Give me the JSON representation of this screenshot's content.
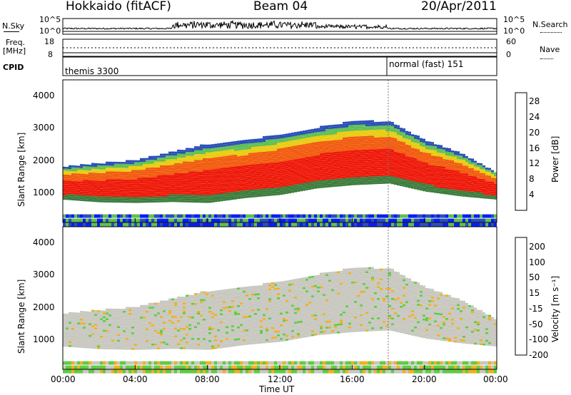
{
  "header": {
    "station": "Hokkaido (fitACF)",
    "beam": "Beam 04",
    "date": "20/Apr/2011"
  },
  "top_panels": {
    "nsky": {
      "label": "N.Sky",
      "ticks": [
        "10^5",
        "10^0"
      ],
      "right_ticks": [
        "10^5",
        "10^0"
      ],
      "right_label": "N.Search"
    },
    "freq": {
      "label_line1": "Freq.",
      "label_line2": "[MHz]",
      "ticks": [
        "18",
        "8"
      ],
      "right_ticks": [
        "60",
        "0"
      ],
      "right_label": "Nave"
    },
    "cpid": {
      "label": "CPID",
      "modes": [
        "themis 3300",
        "normal (fast) 151"
      ]
    }
  },
  "chart_data": [
    {
      "type": "heatmap",
      "name": "power",
      "ylabel": "Slant Range [km]",
      "yticks": [
        "1000",
        "2000",
        "3000",
        "4000"
      ],
      "ylim": [
        200,
        4600
      ],
      "colorbar": {
        "label": "Power [dB]",
        "ticks": [
          "4",
          "8",
          "12",
          "16",
          "20",
          "24",
          "28"
        ],
        "colors": [
          "#0b1ef0",
          "#2a4fb8",
          "#3e7d3e",
          "#5fbf54",
          "#e8cc14",
          "#f29318",
          "#f25c10",
          "#ee1a0a"
        ]
      },
      "bands": [
        {
          "t": [
            0,
            2,
            4,
            6,
            8,
            10,
            12,
            14,
            16,
            18,
            20,
            22,
            24
          ],
          "low": [
            900,
            820,
            800,
            830,
            800,
            950,
            1050,
            1250,
            1350,
            1400,
            1150,
            1000,
            900
          ],
          "high": [
            1900,
            2000,
            2100,
            2350,
            2600,
            2700,
            2900,
            3100,
            3300,
            3300,
            2700,
            2300,
            1700
          ]
        }
      ]
    },
    {
      "type": "heatmap",
      "name": "velocity",
      "ylabel": "Slant Range [km]",
      "yticks": [
        "1000",
        "2000",
        "3000",
        "4000"
      ],
      "ylim": [
        200,
        4600
      ],
      "colorbar": {
        "label": "Velocity [m s⁻¹]",
        "ticks": [
          "200",
          "100",
          "50",
          "15",
          "-15",
          "-50",
          "-100",
          "-200"
        ],
        "colors": [
          "#1020c8",
          "#3d6fb0",
          "#3f8a44",
          "#5fcc45",
          "#c8c8c0",
          "#f0b020",
          "#f08010",
          "#f04010",
          "#ee1010"
        ]
      }
    }
  ],
  "time_axis": {
    "label": "Time UT",
    "ticks": [
      "00:00",
      "04:00",
      "08:00",
      "12:00",
      "16:00",
      "20:00",
      "00:00"
    ]
  }
}
